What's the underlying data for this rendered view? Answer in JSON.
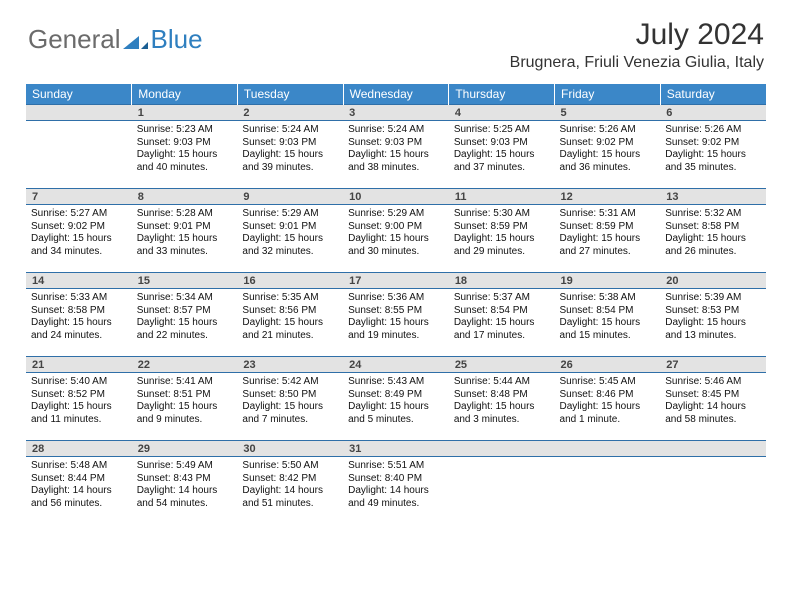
{
  "brand": {
    "part1": "General",
    "part2": "Blue"
  },
  "title": "July 2024",
  "location": "Brugnera, Friuli Venezia Giulia, Italy",
  "colors": {
    "headerBg": "#3b87c8",
    "dayBg": "#e3e3e3",
    "borderBlue": "#2f6fa8"
  },
  "dayNames": [
    "Sunday",
    "Monday",
    "Tuesday",
    "Wednesday",
    "Thursday",
    "Friday",
    "Saturday"
  ],
  "weeks": [
    {
      "nums": [
        "",
        "1",
        "2",
        "3",
        "4",
        "5",
        "6"
      ],
      "cells": [
        {},
        {
          "sr": "Sunrise: 5:23 AM",
          "ss": "Sunset: 9:03 PM",
          "dl1": "Daylight: 15 hours",
          "dl2": "and 40 minutes."
        },
        {
          "sr": "Sunrise: 5:24 AM",
          "ss": "Sunset: 9:03 PM",
          "dl1": "Daylight: 15 hours",
          "dl2": "and 39 minutes."
        },
        {
          "sr": "Sunrise: 5:24 AM",
          "ss": "Sunset: 9:03 PM",
          "dl1": "Daylight: 15 hours",
          "dl2": "and 38 minutes."
        },
        {
          "sr": "Sunrise: 5:25 AM",
          "ss": "Sunset: 9:03 PM",
          "dl1": "Daylight: 15 hours",
          "dl2": "and 37 minutes."
        },
        {
          "sr": "Sunrise: 5:26 AM",
          "ss": "Sunset: 9:02 PM",
          "dl1": "Daylight: 15 hours",
          "dl2": "and 36 minutes."
        },
        {
          "sr": "Sunrise: 5:26 AM",
          "ss": "Sunset: 9:02 PM",
          "dl1": "Daylight: 15 hours",
          "dl2": "and 35 minutes."
        }
      ]
    },
    {
      "nums": [
        "7",
        "8",
        "9",
        "10",
        "11",
        "12",
        "13"
      ],
      "cells": [
        {
          "sr": "Sunrise: 5:27 AM",
          "ss": "Sunset: 9:02 PM",
          "dl1": "Daylight: 15 hours",
          "dl2": "and 34 minutes."
        },
        {
          "sr": "Sunrise: 5:28 AM",
          "ss": "Sunset: 9:01 PM",
          "dl1": "Daylight: 15 hours",
          "dl2": "and 33 minutes."
        },
        {
          "sr": "Sunrise: 5:29 AM",
          "ss": "Sunset: 9:01 PM",
          "dl1": "Daylight: 15 hours",
          "dl2": "and 32 minutes."
        },
        {
          "sr": "Sunrise: 5:29 AM",
          "ss": "Sunset: 9:00 PM",
          "dl1": "Daylight: 15 hours",
          "dl2": "and 30 minutes."
        },
        {
          "sr": "Sunrise: 5:30 AM",
          "ss": "Sunset: 8:59 PM",
          "dl1": "Daylight: 15 hours",
          "dl2": "and 29 minutes."
        },
        {
          "sr": "Sunrise: 5:31 AM",
          "ss": "Sunset: 8:59 PM",
          "dl1": "Daylight: 15 hours",
          "dl2": "and 27 minutes."
        },
        {
          "sr": "Sunrise: 5:32 AM",
          "ss": "Sunset: 8:58 PM",
          "dl1": "Daylight: 15 hours",
          "dl2": "and 26 minutes."
        }
      ]
    },
    {
      "nums": [
        "14",
        "15",
        "16",
        "17",
        "18",
        "19",
        "20"
      ],
      "cells": [
        {
          "sr": "Sunrise: 5:33 AM",
          "ss": "Sunset: 8:58 PM",
          "dl1": "Daylight: 15 hours",
          "dl2": "and 24 minutes."
        },
        {
          "sr": "Sunrise: 5:34 AM",
          "ss": "Sunset: 8:57 PM",
          "dl1": "Daylight: 15 hours",
          "dl2": "and 22 minutes."
        },
        {
          "sr": "Sunrise: 5:35 AM",
          "ss": "Sunset: 8:56 PM",
          "dl1": "Daylight: 15 hours",
          "dl2": "and 21 minutes."
        },
        {
          "sr": "Sunrise: 5:36 AM",
          "ss": "Sunset: 8:55 PM",
          "dl1": "Daylight: 15 hours",
          "dl2": "and 19 minutes."
        },
        {
          "sr": "Sunrise: 5:37 AM",
          "ss": "Sunset: 8:54 PM",
          "dl1": "Daylight: 15 hours",
          "dl2": "and 17 minutes."
        },
        {
          "sr": "Sunrise: 5:38 AM",
          "ss": "Sunset: 8:54 PM",
          "dl1": "Daylight: 15 hours",
          "dl2": "and 15 minutes."
        },
        {
          "sr": "Sunrise: 5:39 AM",
          "ss": "Sunset: 8:53 PM",
          "dl1": "Daylight: 15 hours",
          "dl2": "and 13 minutes."
        }
      ]
    },
    {
      "nums": [
        "21",
        "22",
        "23",
        "24",
        "25",
        "26",
        "27"
      ],
      "cells": [
        {
          "sr": "Sunrise: 5:40 AM",
          "ss": "Sunset: 8:52 PM",
          "dl1": "Daylight: 15 hours",
          "dl2": "and 11 minutes."
        },
        {
          "sr": "Sunrise: 5:41 AM",
          "ss": "Sunset: 8:51 PM",
          "dl1": "Daylight: 15 hours",
          "dl2": "and 9 minutes."
        },
        {
          "sr": "Sunrise: 5:42 AM",
          "ss": "Sunset: 8:50 PM",
          "dl1": "Daylight: 15 hours",
          "dl2": "and 7 minutes."
        },
        {
          "sr": "Sunrise: 5:43 AM",
          "ss": "Sunset: 8:49 PM",
          "dl1": "Daylight: 15 hours",
          "dl2": "and 5 minutes."
        },
        {
          "sr": "Sunrise: 5:44 AM",
          "ss": "Sunset: 8:48 PM",
          "dl1": "Daylight: 15 hours",
          "dl2": "and 3 minutes."
        },
        {
          "sr": "Sunrise: 5:45 AM",
          "ss": "Sunset: 8:46 PM",
          "dl1": "Daylight: 15 hours",
          "dl2": "and 1 minute."
        },
        {
          "sr": "Sunrise: 5:46 AM",
          "ss": "Sunset: 8:45 PM",
          "dl1": "Daylight: 14 hours",
          "dl2": "and 58 minutes."
        }
      ]
    },
    {
      "nums": [
        "28",
        "29",
        "30",
        "31",
        "",
        "",
        ""
      ],
      "cells": [
        {
          "sr": "Sunrise: 5:48 AM",
          "ss": "Sunset: 8:44 PM",
          "dl1": "Daylight: 14 hours",
          "dl2": "and 56 minutes."
        },
        {
          "sr": "Sunrise: 5:49 AM",
          "ss": "Sunset: 8:43 PM",
          "dl1": "Daylight: 14 hours",
          "dl2": "and 54 minutes."
        },
        {
          "sr": "Sunrise: 5:50 AM",
          "ss": "Sunset: 8:42 PM",
          "dl1": "Daylight: 14 hours",
          "dl2": "and 51 minutes."
        },
        {
          "sr": "Sunrise: 5:51 AM",
          "ss": "Sunset: 8:40 PM",
          "dl1": "Daylight: 14 hours",
          "dl2": "and 49 minutes."
        },
        {},
        {},
        {}
      ]
    }
  ]
}
